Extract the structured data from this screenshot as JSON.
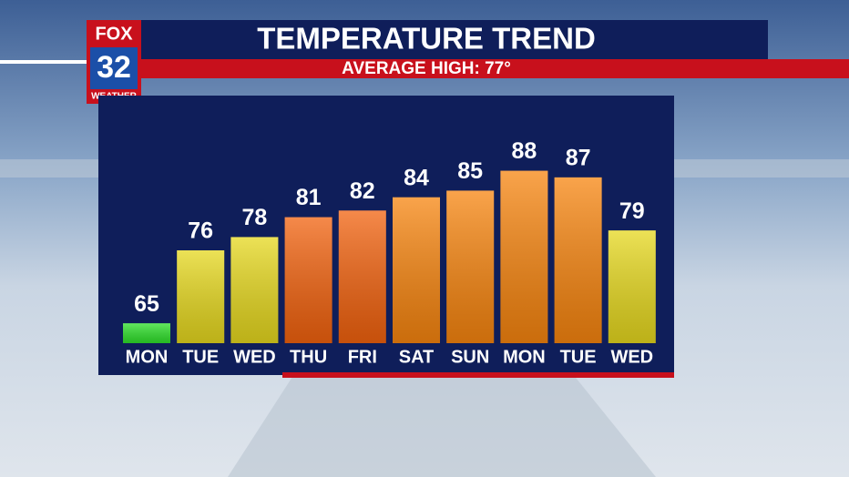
{
  "logo": {
    "network": "FOX",
    "channel": "32",
    "brand": "WEATHER"
  },
  "chart_data": {
    "type": "bar",
    "title": "TEMPERATURE TREND",
    "subtitle": "AVERAGE HIGH: 77°",
    "categories": [
      "MON",
      "TUE",
      "WED",
      "THU",
      "FRI",
      "SAT",
      "SUN",
      "MON",
      "TUE",
      "WED"
    ],
    "values": [
      65,
      76,
      78,
      81,
      82,
      84,
      85,
      88,
      87,
      79
    ],
    "colors": [
      "#2ee02a",
      "#e6d81e",
      "#e6d81e",
      "#f2620e",
      "#f2620e",
      "#f7850f",
      "#f7850f",
      "#f7850f",
      "#f7850f",
      "#e6d81e"
    ],
    "ylim": [
      62,
      90
    ]
  }
}
